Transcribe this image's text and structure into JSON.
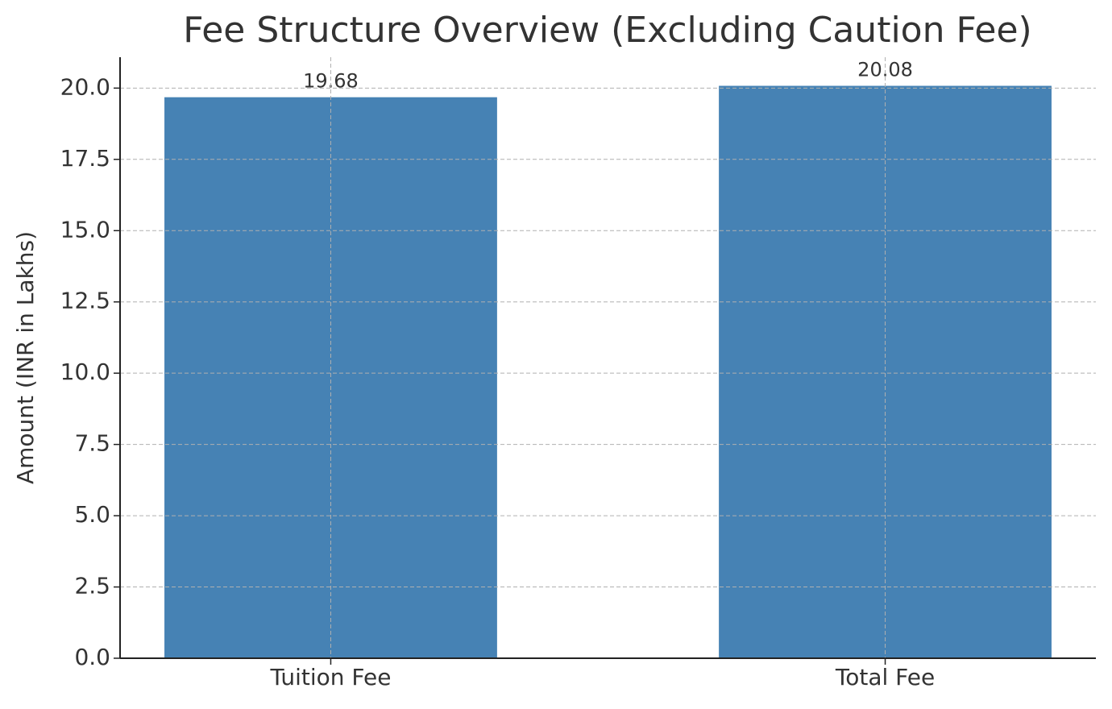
{
  "chart_data": {
    "type": "bar",
    "title": "Fee Structure Overview (Excluding Caution Fee)",
    "y_label": "Amount (INR in Lakhs)",
    "categories": [
      "Tuition Fee",
      "Total Fee"
    ],
    "values": [
      19.68,
      20.08
    ],
    "color": "#4682b4",
    "ylim": [
      0,
      21.084
    ],
    "yticks": [
      {
        "value": 0,
        "label": "0.0"
      },
      2.5,
      {
        "value": 5,
        "label": "5.0"
      },
      7.5,
      {
        "value": 10,
        "label": "10.0"
      },
      12.5,
      {
        "value": 15,
        "label": "15.0"
      },
      17.5,
      {
        "value": 20,
        "label": "20.0"
      }
    ],
    "grid": true
  }
}
